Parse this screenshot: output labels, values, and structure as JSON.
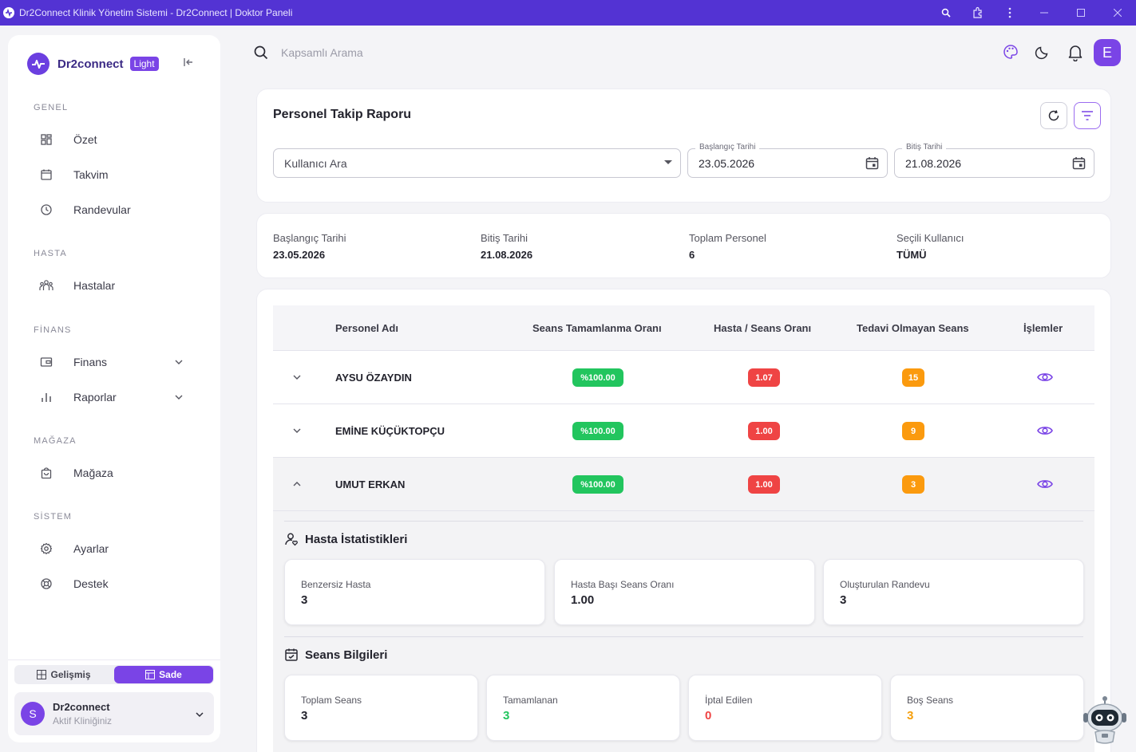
{
  "window": {
    "title": "Dr2Connect Klinik Yönetim Sistemi - Dr2Connect | Doktor Paneli"
  },
  "sidebar": {
    "brand": "Dr2connect",
    "badge": "Light",
    "sections": [
      {
        "title": "GENEL",
        "items": [
          {
            "label": "Özet"
          },
          {
            "label": "Takvim"
          },
          {
            "label": "Randevular"
          }
        ]
      },
      {
        "title": "HASTA",
        "items": [
          {
            "label": "Hastalar"
          }
        ]
      },
      {
        "title": "FİNANS",
        "items": [
          {
            "label": "Finans"
          },
          {
            "label": "Raporlar"
          }
        ]
      },
      {
        "title": "MAĞAZA",
        "items": [
          {
            "label": "Mağaza"
          }
        ]
      },
      {
        "title": "SİSTEM",
        "items": [
          {
            "label": "Ayarlar"
          },
          {
            "label": "Destek"
          }
        ]
      }
    ],
    "mode_advanced": "Gelişmiş",
    "mode_simple": "Sade",
    "clinic": {
      "initial": "S",
      "name": "Dr2connect",
      "subtitle": "Aktif Kliniğiniz"
    }
  },
  "topbar": {
    "search_placeholder": "Kapsamlı Arama",
    "user_initial": "E"
  },
  "report": {
    "title": "Personel Takip Raporu",
    "user_select": "Kullanıcı Ara",
    "start_label": "Başlangıç Tarihi",
    "start_value": "23.05.2026",
    "end_label": "Bitiş Tarihi",
    "end_value": "21.08.2026"
  },
  "summary": {
    "items": [
      {
        "label": "Başlangıç Tarihi",
        "value": "23.05.2026"
      },
      {
        "label": "Bitiş Tarihi",
        "value": "21.08.2026"
      },
      {
        "label": "Toplam Personel",
        "value": "6"
      },
      {
        "label": "Seçili Kullanıcı",
        "value": "TÜMÜ"
      }
    ]
  },
  "table": {
    "headers": [
      "Personel Adı",
      "Seans Tamamlanma Oranı",
      "Hasta / Seans Oranı",
      "Tedavi Olmayan Seans",
      "İşlemler"
    ],
    "rows": [
      {
        "name": "AYSU ÖZAYDIN",
        "completion": "%100.00",
        "ratio": "1.07",
        "untreated": "15",
        "expanded": false
      },
      {
        "name": "EMİNE KÜÇÜKTOPÇU",
        "completion": "%100.00",
        "ratio": "1.00",
        "untreated": "9",
        "expanded": false
      },
      {
        "name": "UMUT ERKAN",
        "completion": "%100.00",
        "ratio": "1.00",
        "untreated": "3",
        "expanded": true
      }
    ]
  },
  "detail": {
    "patient_title": "Hasta İstatistikleri",
    "patient_stats": [
      {
        "label": "Benzersiz Hasta",
        "value": "3"
      },
      {
        "label": "Hasta Başı Seans Oranı",
        "value": "1.00"
      },
      {
        "label": "Oluşturulan Randevu",
        "value": "3"
      }
    ],
    "session_title": "Seans Bilgileri",
    "session_stats": [
      {
        "label": "Toplam Seans",
        "value": "3",
        "color": "#23232d"
      },
      {
        "label": "Tamamlanan",
        "value": "3",
        "color": "#22c55e"
      },
      {
        "label": "İptal Edilen",
        "value": "0",
        "color": "#ef4444"
      },
      {
        "label": "Boş Seans",
        "value": "3",
        "color": "#f59e0b"
      }
    ]
  },
  "colors": {
    "accent": "#7a44e6",
    "titlebar": "#5333d3",
    "success": "#22c55e",
    "danger": "#ef4444",
    "warning": "#fb9a0e"
  }
}
